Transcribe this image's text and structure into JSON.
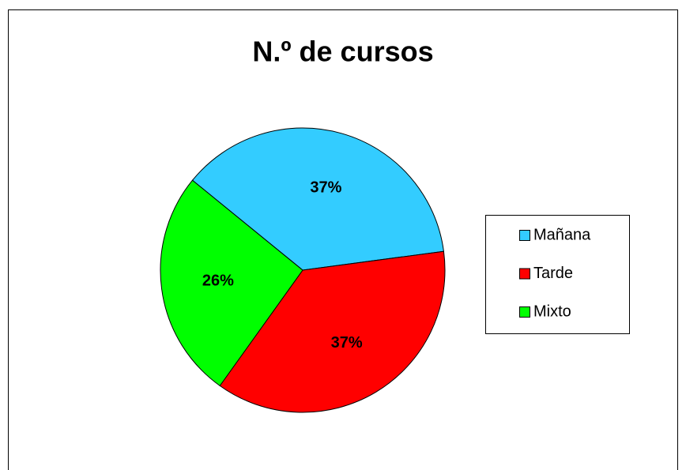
{
  "chart_data": {
    "type": "pie",
    "title": "N.º de cursos",
    "categories": [
      "Mañana",
      "Tarde",
      "Mixto"
    ],
    "values": [
      37,
      37,
      26
    ],
    "value_labels": [
      "37%",
      "37%",
      "26%"
    ],
    "colors": [
      "#33ccff",
      "#ff0000",
      "#00ff00"
    ],
    "legend": "right"
  }
}
